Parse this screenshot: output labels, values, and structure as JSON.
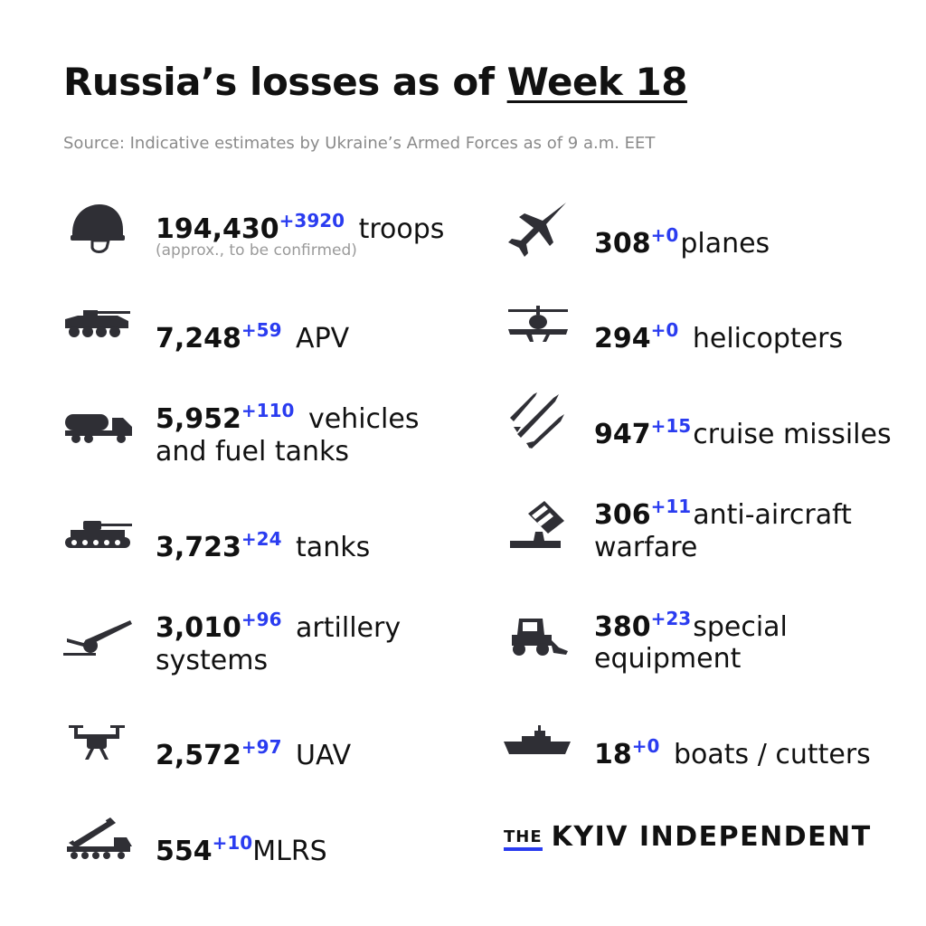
{
  "header": {
    "title_prefix": "Russia’s losses as of",
    "title_week": "Week 18",
    "source": "Source: Indicative estimates by Ukraine’s Armed Forces as of 9 a.m. EET"
  },
  "left": [
    {
      "icon": "helmet-icon",
      "value": "194,430",
      "delta": "+3920",
      "label": "troops",
      "note": "(approx., to be confirmed)"
    },
    {
      "icon": "apv-icon",
      "value": "7,248",
      "delta": "+59",
      "label": "APV"
    },
    {
      "icon": "fuel-truck-icon",
      "value": "5,952",
      "delta": "+110",
      "label": "vehicles",
      "label2": "and fuel tanks"
    },
    {
      "icon": "tank-icon",
      "value": "3,723",
      "delta": "+24",
      "label": "tanks"
    },
    {
      "icon": "artillery-icon",
      "value": "3,010",
      "delta": "+96",
      "label": "artillery",
      "label2": "systems"
    },
    {
      "icon": "drone-icon",
      "value": "2,572",
      "delta": "+97",
      "label": "UAV"
    },
    {
      "icon": "mlrs-icon",
      "value": "554",
      "delta": "+10",
      "label": "MLRS"
    }
  ],
  "right": [
    {
      "icon": "jet-icon",
      "value": "308",
      "delta": "+0",
      "label": "planes"
    },
    {
      "icon": "helicopter-icon",
      "value": "294",
      "delta": "+0",
      "label": "helicopters"
    },
    {
      "icon": "missile-icon",
      "value": "947",
      "delta": "+15",
      "label": "cruise missiles"
    },
    {
      "icon": "anti-aircraft-icon",
      "value": "306",
      "delta": "+11",
      "label": "anti-aircraft",
      "label2": "warfare"
    },
    {
      "icon": "loader-icon",
      "value": "380",
      "delta": "+23",
      "label": "special",
      "label2": "equipment"
    },
    {
      "icon": "ship-icon",
      "value": "18",
      "delta": "+0",
      "label": "boats / cutters"
    }
  ],
  "logo": {
    "the": "THE",
    "name": "KYIV INDEPENDENT"
  },
  "colors": {
    "accent": "#2a3cf0",
    "text": "#111111",
    "icon": "#2f2f35",
    "muted": "#8a8a8a"
  }
}
